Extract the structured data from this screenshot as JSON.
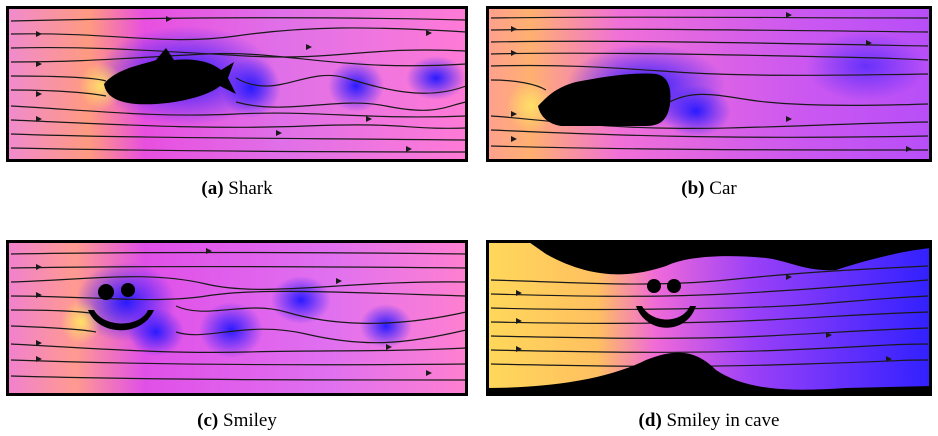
{
  "figure": {
    "panels": [
      {
        "id": "a",
        "label": "(a)",
        "name": "Shark"
      },
      {
        "id": "b",
        "label": "(b)",
        "name": "Car"
      },
      {
        "id": "c",
        "label": "(c)",
        "name": "Smiley"
      },
      {
        "id": "d",
        "label": "(d)",
        "name": "Smiley in cave"
      }
    ],
    "colors": {
      "obstacle": "#000000",
      "high": "#ffe066",
      "mid": "#ff66cc",
      "low": "#2a1aff",
      "streamline": "#1a1a1a"
    }
  }
}
